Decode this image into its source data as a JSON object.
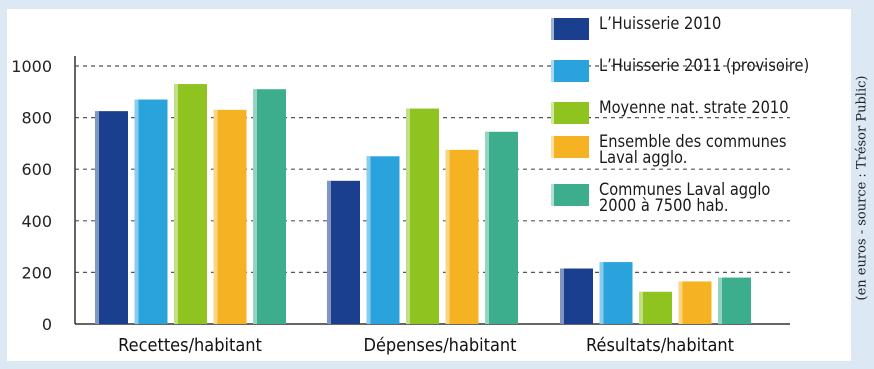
{
  "source_note": "(en euros - source : Trésor Public)",
  "chart_data": {
    "type": "bar",
    "categories": [
      "Recettes/habitant",
      "Dépenses/habitant",
      "Résultats/habitant"
    ],
    "yticks": [
      0,
      200,
      400,
      600,
      800,
      1000
    ],
    "ylim": [
      0,
      1000
    ],
    "grid": "dashed horizontal",
    "legend_position": "top-right",
    "series": [
      {
        "name": "L’Huisserie 2010",
        "color": "#1b3f8f",
        "values": [
          825,
          555,
          215
        ]
      },
      {
        "name": "L’Huisserie 2011 (provisoire)",
        "color": "#2aa3dd",
        "values": [
          870,
          650,
          240
        ]
      },
      {
        "name": "Moyenne nat. strate 2010",
        "color": "#8fc31f",
        "values": [
          930,
          835,
          125
        ]
      },
      {
        "name": "Ensemble des communes\nLaval agglo.",
        "color": "#f5b323",
        "values": [
          830,
          675,
          165
        ]
      },
      {
        "name": "Communes Laval agglo\n2000 à 7500 hab.",
        "color": "#3cae8e",
        "values": [
          910,
          745,
          180
        ]
      }
    ]
  }
}
